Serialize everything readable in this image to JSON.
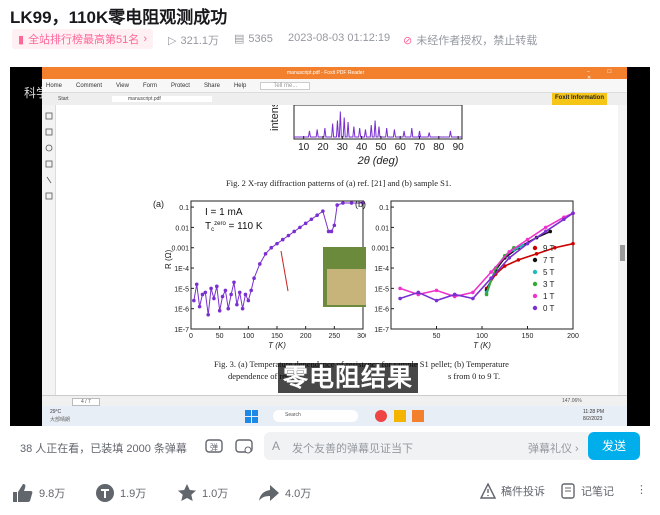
{
  "page": {
    "title": "LK99，110K零电阻观测成功",
    "rank_badge": "全站排行榜最高第51名",
    "plays": "321.1万",
    "danmaku_count": "5365",
    "datetime": "2023-08-03 01:12:19",
    "notice": "未经作者授权，禁止转载"
  },
  "video": {
    "watermark": "科学",
    "subtitle": "零电阻结果",
    "app_title": "manuscript.pdf - Foxit PDF Reader",
    "menu": [
      "Home",
      "Comment",
      "View",
      "Form",
      "Protect",
      "Share",
      "Help"
    ],
    "search_placeholder": "Tell me...",
    "info_button": "Foxit Information",
    "tabs": [
      "Start",
      "manuscript.pdf"
    ],
    "page_indicator": "4 / 7",
    "zoom": "147.06%",
    "weather_temp": "29°C",
    "weather_desc": "大部晴朗",
    "taskbar_search": "Search",
    "clock_time": "11:28 PM",
    "clock_date": "8/2/2023",
    "fig2_caption": "Fig. 2 X-ray diffraction patterns of (a) ref. [21] and (b) sample S1.",
    "fig3_caption_line1": "Fig. 3. (a) Temperature dependence of resistance for sample S1 pellet; (b) Temperature",
    "fig3_caption_line2a": "dependence of resista",
    "fig3_caption_line2b": "s from 0 to 9 T."
  },
  "chart_data": [
    {
      "type": "line",
      "panel": "xrd-top",
      "xlabel": "2θ (deg)",
      "ylabel": "intens",
      "xticks": [
        10,
        20,
        30,
        40,
        50,
        60,
        70,
        80,
        90
      ],
      "xlim": [
        5,
        92
      ],
      "peaks": [
        [
          13,
          0.2
        ],
        [
          17,
          0.25
        ],
        [
          21,
          0.3
        ],
        [
          25,
          0.45
        ],
        [
          27.5,
          0.55
        ],
        [
          29,
          0.85
        ],
        [
          31,
          0.65
        ],
        [
          33,
          0.5
        ],
        [
          36,
          0.35
        ],
        [
          39,
          0.3
        ],
        [
          42,
          0.25
        ],
        [
          45,
          0.4
        ],
        [
          47,
          0.55
        ],
        [
          49,
          0.35
        ],
        [
          53,
          0.3
        ],
        [
          57,
          0.25
        ],
        [
          62,
          0.2
        ],
        [
          66,
          0.3
        ],
        [
          70,
          0.2
        ],
        [
          75,
          0.15
        ],
        [
          86,
          0.2
        ]
      ]
    },
    {
      "type": "scatter",
      "panel": "a",
      "panel_label": "(a)",
      "annotation_current": "I = 1 mA",
      "annotation_tc_prefix": "T",
      "annotation_tc_sub": "c",
      "annotation_tc_sup": "zero",
      "annotation_tc_value": "= 110 K",
      "xlabel": "T (K)",
      "ylabel": "R (Ω)",
      "xticks": [
        0,
        50,
        100,
        150,
        200,
        250,
        300
      ],
      "yticks": [
        "1E-7",
        "1E-6",
        "1E-5",
        "1E-4",
        "0.001",
        "0.01",
        "0.1"
      ],
      "xlim": [
        0,
        300
      ],
      "ylog_range": [
        -7,
        -0.7
      ],
      "points": [
        [
          5,
          -5.6
        ],
        [
          10,
          -4.8
        ],
        [
          15,
          -5.9
        ],
        [
          20,
          -5.3
        ],
        [
          25,
          -5.2
        ],
        [
          30,
          -6.3
        ],
        [
          35,
          -5.0
        ],
        [
          40,
          -5.5
        ],
        [
          45,
          -4.9
        ],
        [
          50,
          -6.1
        ],
        [
          55,
          -5.4
        ],
        [
          60,
          -5.1
        ],
        [
          65,
          -6.0
        ],
        [
          70,
          -5.3
        ],
        [
          75,
          -4.7
        ],
        [
          80,
          -5.8
        ],
        [
          85,
          -5.2
        ],
        [
          90,
          -6.0
        ],
        [
          95,
          -5.3
        ],
        [
          100,
          -5.6
        ],
        [
          105,
          -5.1
        ],
        [
          110,
          -4.5
        ],
        [
          120,
          -3.8
        ],
        [
          130,
          -3.3
        ],
        [
          140,
          -3.0
        ],
        [
          150,
          -2.8
        ],
        [
          160,
          -2.6
        ],
        [
          170,
          -2.4
        ],
        [
          180,
          -2.2
        ],
        [
          190,
          -2.0
        ],
        [
          200,
          -1.8
        ],
        [
          210,
          -1.6
        ],
        [
          220,
          -1.4
        ],
        [
          230,
          -1.2
        ],
        [
          240,
          -2.2
        ],
        [
          245,
          -2.2
        ],
        [
          250,
          -1.9
        ],
        [
          255,
          -0.9
        ],
        [
          265,
          -0.8
        ],
        [
          280,
          -0.8
        ],
        [
          300,
          -0.8
        ]
      ]
    },
    {
      "type": "scatter",
      "panel": "b",
      "panel_label": "(b)",
      "xlabel": "T (K)",
      "yticks": [
        "1E-7",
        "1E-6",
        "1E-5",
        "1E-4",
        "0.001",
        "0.01",
        "0.1"
      ],
      "xticks": [
        50,
        100,
        150,
        200
      ],
      "xlim": [
        0,
        200
      ],
      "ylog_range": [
        -7,
        -0.7
      ],
      "series": [
        {
          "name": "9 T",
          "color": "#cc0000",
          "points": [
            [
              105,
              -5.0
            ],
            [
              115,
              -4.3
            ],
            [
              125,
              -3.9
            ],
            [
              140,
              -3.6
            ],
            [
              160,
              -3.3
            ],
            [
              180,
              -3.0
            ],
            [
              200,
              -2.8
            ]
          ]
        },
        {
          "name": "7 T",
          "color": "#111111",
          "points": [
            [
              105,
              -5.1
            ],
            [
              115,
              -4.1
            ],
            [
              125,
              -3.5
            ],
            [
              140,
              -3.0
            ],
            [
              160,
              -2.5
            ],
            [
              175,
              -2.2
            ]
          ]
        },
        {
          "name": "5 T",
          "color": "#22bbbb",
          "points": [
            [
              105,
              -5.2
            ],
            [
              115,
              -4.0
            ],
            [
              125,
              -3.4
            ],
            [
              135,
              -3.1
            ],
            [
              145,
              -2.9
            ]
          ]
        },
        {
          "name": "3 T",
          "color": "#33aa33",
          "points": [
            [
              105,
              -5.3
            ],
            [
              115,
              -4.0
            ],
            [
              125,
              -3.4
            ],
            [
              135,
              -3.0
            ]
          ]
        },
        {
          "name": "1 T",
          "color": "#ee33cc",
          "points": [
            [
              10,
              -5.0
            ],
            [
              30,
              -5.3
            ],
            [
              50,
              -5.1
            ],
            [
              70,
              -5.4
            ],
            [
              90,
              -5.2
            ],
            [
              110,
              -4.2
            ],
            [
              130,
              -3.2
            ],
            [
              150,
              -2.6
            ],
            [
              170,
              -2.0
            ],
            [
              190,
              -1.5
            ],
            [
              200,
              -1.3
            ]
          ]
        },
        {
          "name": "0 T",
          "color": "#7a2fd0",
          "points": [
            [
              10,
              -5.5
            ],
            [
              30,
              -5.2
            ],
            [
              50,
              -5.6
            ],
            [
              70,
              -5.3
            ],
            [
              90,
              -5.5
            ],
            [
              110,
              -4.5
            ],
            [
              130,
              -3.5
            ],
            [
              150,
              -2.8
            ],
            [
              170,
              -2.2
            ],
            [
              190,
              -1.6
            ],
            [
              200,
              -1.3
            ]
          ]
        }
      ]
    }
  ],
  "danmaku_bar": {
    "viewers": "38 人正在看，已装填 2000 条弹幕",
    "input_placeholder": "发个友善的弹幕见证当下",
    "etiquette": "弹幕礼仪 ›",
    "send": "发送"
  },
  "actions": {
    "like": "9.8万",
    "coin": "1.9万",
    "favorite": "1.0万",
    "share": "4.0万",
    "report": "稿件投诉",
    "notes": "记笔记"
  },
  "colors": {
    "accent": "#00aeec",
    "pink": "#ff6699",
    "foxit_orange": "#f2802c",
    "plot_purple": "#7a2fd0"
  }
}
